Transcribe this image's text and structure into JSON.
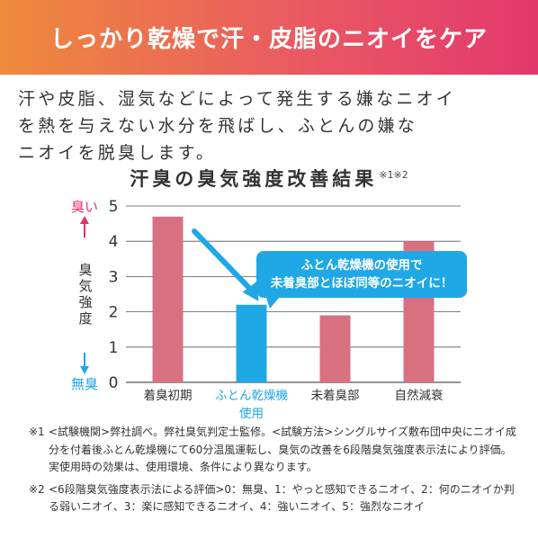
{
  "banner": {
    "title": "しっかり乾燥で汗・皮脂のニオイをケア"
  },
  "lead": {
    "lines": [
      "汗や皮脂、湿気などによって発生する嫌なニオイ",
      "を熱を与えない水分を飛ばし、ふとんの嫌な",
      "ニオイを脱臭します。"
    ]
  },
  "chart_data": {
    "type": "bar",
    "title": "汗臭の臭気強度改善結果",
    "title_note": "※1※2",
    "categories": [
      "着臭初期",
      "ふとん乾燥機\n使用",
      "未着臭部",
      "自然減衰"
    ],
    "values": [
      4.7,
      2.2,
      1.9,
      4.0
    ],
    "ylabel": "臭気強度",
    "ylim": [
      0,
      5
    ],
    "yticks": [
      0,
      1,
      2,
      3,
      4,
      5
    ],
    "grid": true,
    "y_top_label": "臭い",
    "y_bottom_label": "無臭",
    "callout": "ふとん乾燥機の使用で\n未着臭部とほぼ同等のニオイに！",
    "highlight_index": 1,
    "colors": {
      "bar": "#d9707f",
      "highlight": "#1fa7e6",
      "highlight_label": "#1fa7e6",
      "top_label": "#e2336b",
      "bottom_label": "#1fa7e6",
      "axis_text": "#333333",
      "grid": "#555555"
    }
  },
  "notes": [
    {
      "mark": "※1",
      "text": "<試験機関>弊社調べ。弊社臭気判定士監修。<試験方法>シングルサイズ敷布団中央にニオイ成分を付着後ふとん乾燥機にて60分温風運転し、臭気の改善を6段階臭気強度表示法により評価。実使用時の効果は、使用環境、条件により異なります。"
    },
    {
      "mark": "※2",
      "text": "<6段階臭気強度表示法による評価>0：無臭、1：やっと感知できるニオイ、2：何のニオイか判る弱いニオイ、3：楽に感知できるニオイ、4：強いニオイ、5：強烈なニオイ"
    }
  ]
}
